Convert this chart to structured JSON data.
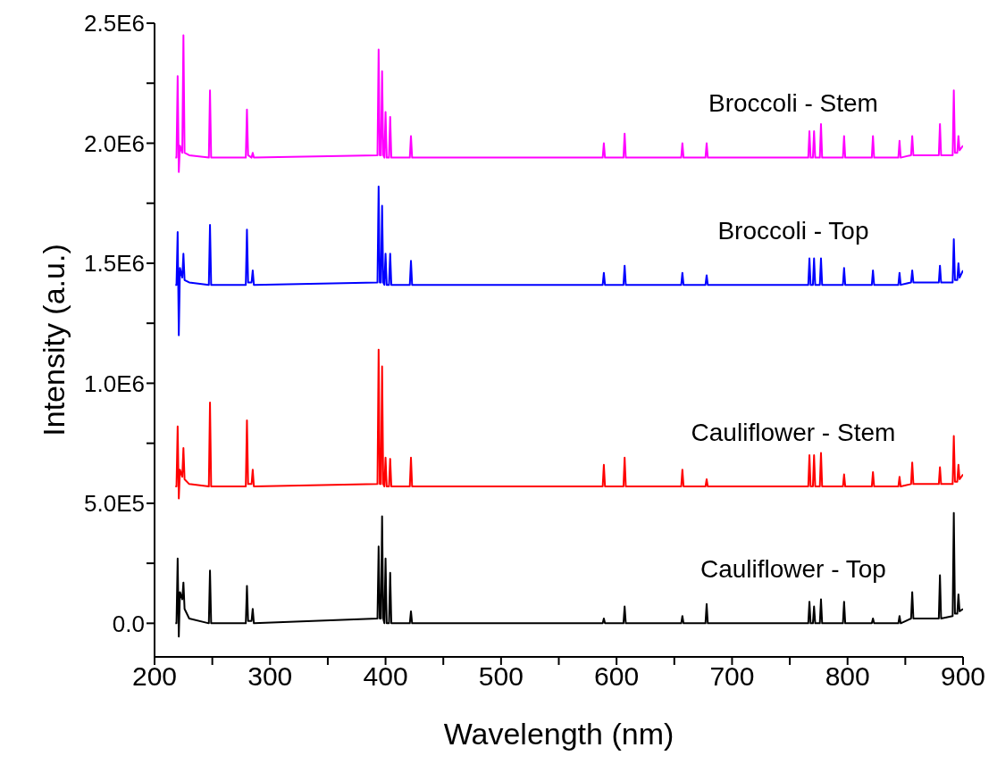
{
  "chart_data": {
    "type": "line",
    "xlabel": "Wavelength (nm)",
    "ylabel": "Intensity (a.u.)",
    "xlim": [
      200,
      900
    ],
    "ylim": [
      -140000,
      2500000
    ],
    "xticks": [
      200,
      {
        "value": 250,
        "label": null
      },
      300,
      {
        "value": 350,
        "label": null
      },
      400,
      {
        "value": 450,
        "label": null
      },
      500,
      {
        "value": 550,
        "label": null
      },
      600,
      {
        "value": 650,
        "label": null
      },
      700,
      {
        "value": 750,
        "label": null
      },
      800,
      {
        "value": 850,
        "label": null
      },
      900
    ],
    "yticks": [
      {
        "value": 0,
        "label": "0.0"
      },
      {
        "value": 250000,
        "label": null
      },
      {
        "value": 500000,
        "label": "5.0E5"
      },
      {
        "value": 750000,
        "label": null
      },
      {
        "value": 1000000,
        "label": "1.0E6"
      },
      {
        "value": 1250000,
        "label": null
      },
      {
        "value": 1500000,
        "label": "1.5E6"
      },
      {
        "value": 1750000,
        "label": null
      },
      {
        "value": 2000000,
        "label": "2.0E6"
      },
      {
        "value": 2250000,
        "label": null
      },
      {
        "value": 2500000,
        "label": "2.5E6"
      }
    ],
    "series": [
      {
        "name": "Broccoli - Stem",
        "color": "#ff00ff",
        "x": [
          218,
          219,
          220,
          221,
          222,
          224,
          225,
          226,
          230,
          247,
          248,
          249,
          279,
          280,
          281,
          284,
          285,
          286,
          393,
          394,
          395,
          396,
          397,
          398,
          399,
          400,
          401,
          403,
          404,
          405,
          421,
          422,
          423,
          588,
          589,
          590,
          606,
          607,
          608,
          656,
          657,
          658,
          677,
          678,
          679,
          766,
          767,
          768,
          770,
          771,
          772,
          776,
          777,
          778,
          796,
          797,
          798,
          821,
          822,
          823,
          844,
          845,
          846,
          855,
          856,
          857,
          879,
          880,
          881,
          891,
          892,
          893,
          895,
          896,
          897,
          900
        ],
        "values": [
          1940000,
          1940000,
          2280000,
          1880000,
          1990000,
          1960000,
          2450000,
          1960000,
          1950000,
          1940000,
          2220000,
          1940000,
          1940000,
          2140000,
          1950000,
          1940000,
          1960000,
          1940000,
          1950000,
          2390000,
          1950000,
          1950000,
          2300000,
          1950000,
          1940000,
          2130000,
          1940000,
          1940000,
          2110000,
          1940000,
          1940000,
          2030000,
          1940000,
          1940000,
          2000000,
          1940000,
          1940000,
          2040000,
          1940000,
          1940000,
          2000000,
          1940000,
          1940000,
          2000000,
          1940000,
          1940000,
          2050000,
          1940000,
          1940000,
          2050000,
          1940000,
          1940000,
          2080000,
          1940000,
          1940000,
          2030000,
          1940000,
          1940000,
          2030000,
          1940000,
          1940000,
          2010000,
          1940000,
          1950000,
          2030000,
          1950000,
          1950000,
          2080000,
          1950000,
          1950000,
          2220000,
          1960000,
          1960000,
          2030000,
          1970000,
          1990000
        ]
      },
      {
        "name": "Broccoli - Top",
        "color": "#0000ff",
        "x": [
          218,
          219,
          220,
          221,
          222,
          224,
          225,
          226,
          230,
          247,
          248,
          249,
          279,
          280,
          281,
          284,
          285,
          286,
          393,
          394,
          395,
          396,
          397,
          398,
          399,
          400,
          401,
          403,
          404,
          405,
          421,
          422,
          423,
          588,
          589,
          590,
          606,
          607,
          608,
          656,
          657,
          658,
          677,
          678,
          679,
          766,
          767,
          768,
          770,
          771,
          772,
          776,
          777,
          778,
          796,
          797,
          798,
          821,
          822,
          823,
          844,
          845,
          846,
          855,
          856,
          857,
          879,
          880,
          881,
          891,
          892,
          893,
          895,
          896,
          897,
          900
        ],
        "values": [
          1410000,
          1410000,
          1630000,
          1200000,
          1480000,
          1440000,
          1540000,
          1430000,
          1420000,
          1410000,
          1660000,
          1410000,
          1410000,
          1640000,
          1420000,
          1420000,
          1470000,
          1410000,
          1420000,
          1820000,
          1420000,
          1420000,
          1740000,
          1420000,
          1410000,
          1540000,
          1410000,
          1410000,
          1540000,
          1410000,
          1410000,
          1510000,
          1410000,
          1410000,
          1460000,
          1410000,
          1410000,
          1490000,
          1410000,
          1410000,
          1460000,
          1410000,
          1410000,
          1450000,
          1410000,
          1410000,
          1520000,
          1410000,
          1410000,
          1520000,
          1410000,
          1410000,
          1520000,
          1410000,
          1410000,
          1480000,
          1410000,
          1410000,
          1470000,
          1410000,
          1410000,
          1460000,
          1410000,
          1420000,
          1470000,
          1420000,
          1420000,
          1490000,
          1420000,
          1420000,
          1600000,
          1430000,
          1430000,
          1500000,
          1440000,
          1470000
        ]
      },
      {
        "name": "Cauliflower - Stem",
        "color": "#ff0000",
        "x": [
          218,
          219,
          220,
          221,
          222,
          224,
          225,
          226,
          230,
          247,
          248,
          249,
          279,
          280,
          281,
          284,
          285,
          286,
          393,
          394,
          395,
          396,
          397,
          398,
          399,
          400,
          401,
          403,
          404,
          405,
          421,
          422,
          423,
          588,
          589,
          590,
          606,
          607,
          608,
          656,
          657,
          658,
          677,
          678,
          679,
          766,
          767,
          768,
          770,
          771,
          772,
          776,
          777,
          778,
          796,
          797,
          798,
          821,
          822,
          823,
          844,
          845,
          846,
          855,
          856,
          857,
          879,
          880,
          881,
          891,
          892,
          893,
          895,
          896,
          897,
          900
        ],
        "values": [
          570000,
          570000,
          820000,
          520000,
          640000,
          610000,
          730000,
          600000,
          580000,
          570000,
          920000,
          570000,
          570000,
          845000,
          580000,
          580000,
          640000,
          570000,
          580000,
          1140000,
          580000,
          580000,
          1070000,
          580000,
          570000,
          690000,
          570000,
          570000,
          685000,
          570000,
          570000,
          690000,
          570000,
          570000,
          660000,
          570000,
          570000,
          690000,
          570000,
          570000,
          640000,
          570000,
          570000,
          600000,
          570000,
          570000,
          700000,
          570000,
          570000,
          700000,
          570000,
          570000,
          710000,
          570000,
          570000,
          620000,
          570000,
          570000,
          630000,
          570000,
          570000,
          610000,
          570000,
          580000,
          670000,
          580000,
          580000,
          650000,
          580000,
          580000,
          780000,
          590000,
          590000,
          660000,
          600000,
          620000
        ]
      },
      {
        "name": "Cauliflower - Top",
        "color": "#000000",
        "x": [
          218,
          219,
          220,
          221,
          222,
          224,
          225,
          226,
          230,
          247,
          248,
          249,
          279,
          280,
          281,
          284,
          285,
          286,
          393,
          394,
          395,
          396,
          397,
          398,
          399,
          400,
          401,
          403,
          404,
          405,
          421,
          422,
          423,
          588,
          589,
          590,
          606,
          607,
          608,
          656,
          657,
          658,
          677,
          678,
          679,
          766,
          767,
          768,
          770,
          771,
          772,
          776,
          777,
          778,
          796,
          797,
          798,
          821,
          822,
          823,
          844,
          845,
          846,
          855,
          856,
          857,
          879,
          880,
          881,
          891,
          892,
          893,
          895,
          896,
          897,
          900
        ],
        "values": [
          0,
          0,
          270000,
          -55000,
          130000,
          100000,
          170000,
          60000,
          20000,
          0,
          220000,
          0,
          0,
          156000,
          10000,
          10000,
          60000,
          0,
          20000,
          320000,
          20000,
          20000,
          446000,
          20000,
          0,
          270000,
          0,
          0,
          210000,
          0,
          0,
          50000,
          0,
          0,
          20000,
          0,
          0,
          70000,
          0,
          0,
          30000,
          0,
          0,
          80000,
          0,
          0,
          90000,
          0,
          0,
          70000,
          0,
          0,
          100000,
          0,
          0,
          90000,
          0,
          0,
          20000,
          0,
          0,
          30000,
          0,
          20000,
          130000,
          20000,
          20000,
          200000,
          20000,
          30000,
          460000,
          40000,
          40000,
          120000,
          50000,
          60000
        ]
      }
    ]
  }
}
